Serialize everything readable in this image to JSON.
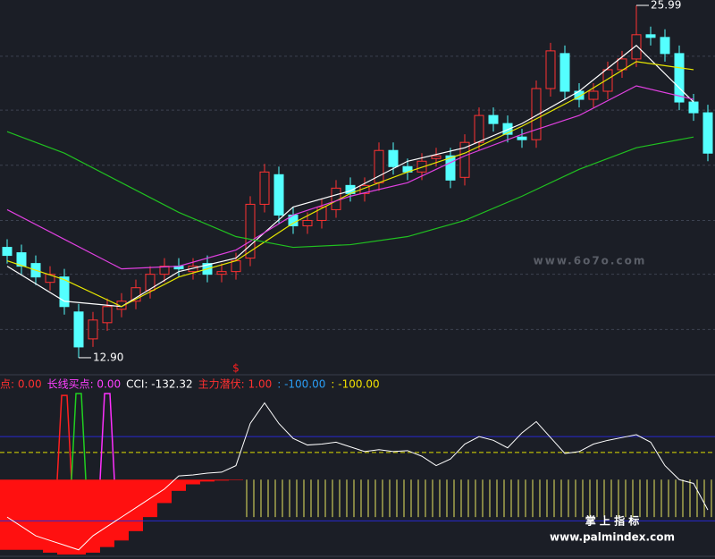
{
  "chart_data": {
    "type": "candlestick",
    "open": [
      17.0,
      16.8,
      16.4,
      15.7,
      15.9,
      14.6,
      13.6,
      14.2,
      14.7,
      15.0,
      15.4,
      16.0,
      16.3,
      16.1,
      16.4,
      16.0,
      16.1,
      16.6,
      18.6,
      19.7,
      18.2,
      17.8,
      18.0,
      18.4,
      19.3,
      19.0,
      19.4,
      20.6,
      20.0,
      19.8,
      20.3,
      20.4,
      19.6,
      20.9,
      21.9,
      21.6,
      21.1,
      21.0,
      22.9,
      24.2,
      22.8,
      22.5,
      22.8,
      23.6,
      24.0,
      24.9,
      24.8,
      24.2,
      22.4,
      22.0
    ],
    "high": [
      17.3,
      17.1,
      16.7,
      16.3,
      16.2,
      14.9,
      14.6,
      15.1,
      15.3,
      15.8,
      16.3,
      16.6,
      16.6,
      16.6,
      16.7,
      16.4,
      16.8,
      18.9,
      20.1,
      20.0,
      18.5,
      18.3,
      18.8,
      19.5,
      19.6,
      19.6,
      20.9,
      20.9,
      20.3,
      20.5,
      20.7,
      20.7,
      21.2,
      22.2,
      22.2,
      21.9,
      21.4,
      23.2,
      24.6,
      24.5,
      23.1,
      23.1,
      23.9,
      24.3,
      25.99,
      25.2,
      25.1,
      24.5,
      22.7,
      22.3
    ],
    "low": [
      16.4,
      16.0,
      15.6,
      15.4,
      14.5,
      12.9,
      13.3,
      13.9,
      14.4,
      14.7,
      15.1,
      15.7,
      15.9,
      15.8,
      15.7,
      15.7,
      15.8,
      16.3,
      18.3,
      17.9,
      17.5,
      17.5,
      17.7,
      18.1,
      18.7,
      18.7,
      19.1,
      19.7,
      19.5,
      19.5,
      20.0,
      19.2,
      19.3,
      20.6,
      21.3,
      20.9,
      20.7,
      20.7,
      22.6,
      22.5,
      22.2,
      22.2,
      22.5,
      23.3,
      23.7,
      24.5,
      23.9,
      22.1,
      21.7,
      20.2
    ],
    "close": [
      16.7,
      16.3,
      15.9,
      16.0,
      14.8,
      13.3,
      14.3,
      14.8,
      15.0,
      15.5,
      16.0,
      16.3,
      16.2,
      16.3,
      16.0,
      16.1,
      16.5,
      18.6,
      19.8,
      18.2,
      17.8,
      18.0,
      18.5,
      19.2,
      19.0,
      19.3,
      20.6,
      20.0,
      19.8,
      20.2,
      20.4,
      19.5,
      20.9,
      21.9,
      21.6,
      21.2,
      21.0,
      22.9,
      24.3,
      22.8,
      22.5,
      22.8,
      23.6,
      24.0,
      24.9,
      24.8,
      24.2,
      22.4,
      22.0,
      20.5
    ],
    "up_color": "#ff3232",
    "down_color": "#54ffff",
    "ylim": [
      12.3,
      26.19
    ],
    "grid_lines": [
      24.1,
      22.1,
      20.05,
      18.0,
      16.0,
      13.95
    ],
    "ma_x": [
      0,
      4,
      8,
      12,
      16,
      20,
      24,
      28,
      32,
      36,
      40,
      44,
      48
    ],
    "ma": [
      {
        "color": "#ffffff",
        "values": [
          16.3,
          15.0,
          14.8,
          16.1,
          16.6,
          18.5,
          19.1,
          20.2,
          20.7,
          21.6,
          22.8,
          24.5,
          22.4
        ]
      },
      {
        "color": "#e8e800",
        "values": [
          16.5,
          15.8,
          14.8,
          15.9,
          16.5,
          17.9,
          19.0,
          19.8,
          20.5,
          21.5,
          22.6,
          23.9,
          23.6
        ]
      },
      {
        "color": "#e040e0",
        "values": [
          18.4,
          17.3,
          16.2,
          16.3,
          16.9,
          18.2,
          18.9,
          19.4,
          20.4,
          21.2,
          21.9,
          23.0,
          22.5
        ]
      },
      {
        "color": "#20c020",
        "values": [
          21.3,
          20.5,
          19.4,
          18.3,
          17.4,
          17.0,
          17.1,
          17.4,
          18.0,
          18.9,
          19.9,
          20.7,
          21.1
        ]
      }
    ],
    "annotations": [
      {
        "index": 5,
        "value": 12.9,
        "label": "12.90"
      },
      {
        "index": 44,
        "value": 25.99
      }
    ],
    "marker": {
      "index": 16,
      "text": "$"
    },
    "indicator_labels": [
      {
        "text": "点: 0.00",
        "color": "#ff3030"
      },
      {
        "text": "长线买点: 0.00",
        "color": "#ff40ff"
      },
      {
        "text": "CCI: -132.32",
        "color": "#ffffff"
      },
      {
        "text": "主力潜伏: 1.00",
        "color": "#ff3030"
      },
      {
        "text": ": -100.00",
        "color": "#2a9df4"
      },
      {
        "text": ": -100.00",
        "color": "#f0e000"
      }
    ],
    "lower_ylim": [
      -180,
      -8
    ],
    "cci": [
      -140,
      -150,
      -160,
      -165,
      -170,
      -175,
      -160,
      -150,
      -140,
      -130,
      -120,
      -110,
      -96,
      -95,
      -93,
      -92,
      -85,
      -40,
      -18,
      -40,
      -56,
      -63,
      -62,
      -60,
      -65,
      -70,
      -68,
      -70,
      -69,
      -75,
      -85,
      -78,
      -62,
      -54,
      -58,
      -66,
      -50,
      -38,
      -55,
      -72,
      -70,
      -62,
      -58,
      -55,
      -52,
      -60,
      -85,
      -100,
      -104,
      -132.32
    ],
    "bar_base": -100,
    "red_bars": [
      -175,
      -175,
      -175,
      -178,
      -180,
      -180,
      -178,
      -172,
      -165,
      -155,
      -140,
      -125,
      -112,
      -105,
      -102,
      -101,
      -100.5,
      null,
      null,
      null,
      null,
      null,
      null,
      null,
      null,
      null,
      null,
      null,
      null,
      null,
      null,
      null,
      null,
      null,
      null,
      null,
      null,
      null,
      null,
      null,
      null,
      null,
      null,
      null,
      null,
      null,
      null,
      null,
      null,
      null
    ],
    "yellow_bars": [
      null,
      null,
      null,
      null,
      null,
      null,
      null,
      null,
      null,
      null,
      null,
      null,
      null,
      null,
      null,
      null,
      null,
      -140,
      -140,
      -140,
      -140,
      -140,
      -140,
      -140,
      -140,
      -140,
      -140,
      -140,
      -140,
      -140,
      -140,
      -140,
      -140,
      -140,
      -140,
      -140,
      -140,
      -140,
      -140,
      -140,
      -140,
      -140,
      -140,
      -140,
      -140,
      -140,
      -140,
      -140,
      -140,
      -140
    ],
    "signals": [
      {
        "index": 4,
        "value": -10,
        "color": "#ff2020"
      },
      {
        "index": 5,
        "value": -8,
        "color": "#20d020"
      },
      {
        "index": 7,
        "value": -8,
        "color": "#ff30ff"
      }
    ],
    "ref_lines": [
      {
        "value": -54,
        "color": "#2828d0"
      },
      {
        "value": -71,
        "color": "#e0e000",
        "dashed": true
      },
      {
        "value": -144,
        "color": "#2828d0"
      }
    ],
    "watermarks": [
      "www.6o7o.com",
      "掌 上 指 标",
      "www.palmindex.com"
    ]
  }
}
